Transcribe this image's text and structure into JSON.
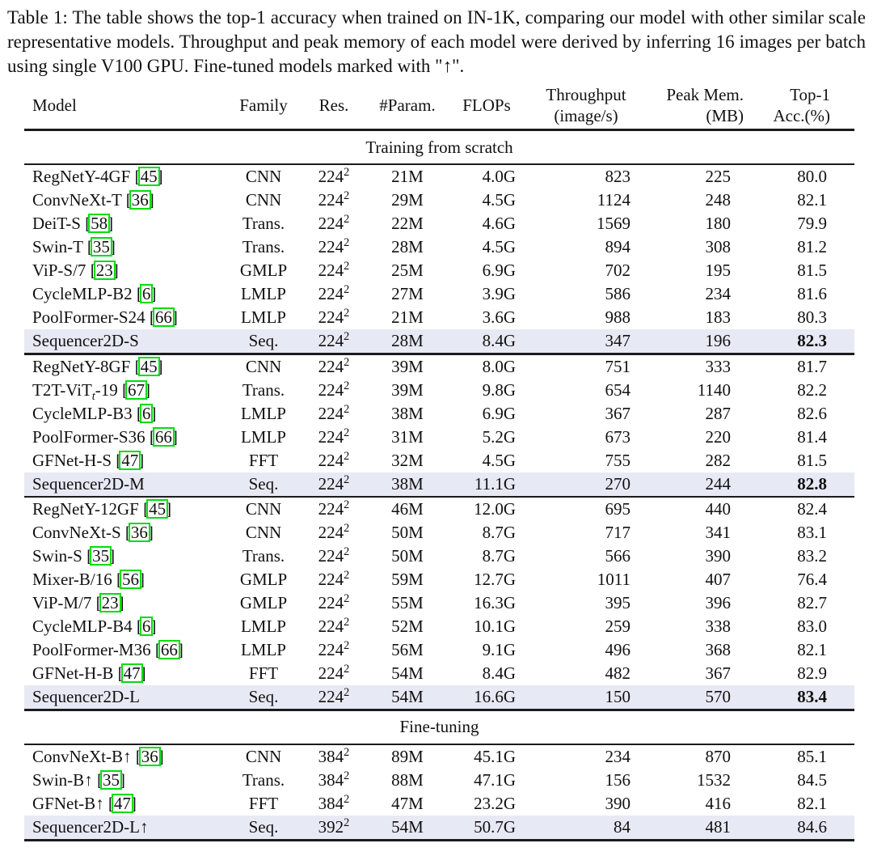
{
  "caption": "Table 1: The table shows the top-1 accuracy when trained on IN-1K, comparing our model with other similar scale representative models. Throughput and peak memory of each model were derived by inferring 16 images per batch using single V100 GPU. Fine-tuned models marked with \"↑\".",
  "colors": {
    "highlight_row": "#e7e9f4",
    "citation_box": "#00dd0d",
    "rule": "#1b1b1b"
  },
  "table": {
    "headers": {
      "model": "Model",
      "family": "Family",
      "res": "Res.",
      "param": "#Param.",
      "flops": "FLOPs",
      "throughput_l1": "Throughput",
      "throughput_l2": "(image/s)",
      "peakmem_l1": "Peak Mem.",
      "peakmem_l2": "(MB)",
      "top1_l1": "Top-1",
      "top1_l2": "Acc.(%)"
    },
    "sections": [
      {
        "label": "Training from scratch",
        "groups": [
          [
            {
              "model": "RegNetY-4GF",
              "model_sub": "",
              "model_post": "",
              "cite": "45",
              "family": "CNN",
              "res": "224",
              "res_sup": "2",
              "param": "21M",
              "flops": "4.0G",
              "throughput": "823",
              "peak_mem": "225",
              "acc": "80.0",
              "highlight": false,
              "acc_bold": false
            },
            {
              "model": "ConvNeXt-T",
              "model_sub": "",
              "model_post": "",
              "cite": "36",
              "family": "CNN",
              "res": "224",
              "res_sup": "2",
              "param": "29M",
              "flops": "4.5G",
              "throughput": "1124",
              "peak_mem": "248",
              "acc": "82.1",
              "highlight": false,
              "acc_bold": false
            },
            {
              "model": "DeiT-S",
              "model_sub": "",
              "model_post": "",
              "cite": "58",
              "family": "Trans.",
              "res": "224",
              "res_sup": "2",
              "param": "22M",
              "flops": "4.6G",
              "throughput": "1569",
              "peak_mem": "180",
              "acc": "79.9",
              "highlight": false,
              "acc_bold": false
            },
            {
              "model": "Swin-T",
              "model_sub": "",
              "model_post": "",
              "cite": "35",
              "family": "Trans.",
              "res": "224",
              "res_sup": "2",
              "param": "28M",
              "flops": "4.5G",
              "throughput": "894",
              "peak_mem": "308",
              "acc": "81.2",
              "highlight": false,
              "acc_bold": false
            },
            {
              "model": "ViP-S/7",
              "model_sub": "",
              "model_post": "",
              "cite": "23",
              "family": "GMLP",
              "res": "224",
              "res_sup": "2",
              "param": "25M",
              "flops": "6.9G",
              "throughput": "702",
              "peak_mem": "195",
              "acc": "81.5",
              "highlight": false,
              "acc_bold": false
            },
            {
              "model": "CycleMLP-B2",
              "model_sub": "",
              "model_post": "",
              "cite": "6",
              "family": "LMLP",
              "res": "224",
              "res_sup": "2",
              "param": "27M",
              "flops": "3.9G",
              "throughput": "586",
              "peak_mem": "234",
              "acc": "81.6",
              "highlight": false,
              "acc_bold": false
            },
            {
              "model": "PoolFormer-S24",
              "model_sub": "",
              "model_post": "",
              "cite": "66",
              "family": "LMLP",
              "res": "224",
              "res_sup": "2",
              "param": "21M",
              "flops": "3.6G",
              "throughput": "988",
              "peak_mem": "183",
              "acc": "80.3",
              "highlight": false,
              "acc_bold": false
            },
            {
              "model": "Sequencer2D-S",
              "model_sub": "",
              "model_post": "",
              "cite": null,
              "family": "Seq.",
              "res": "224",
              "res_sup": "2",
              "param": "28M",
              "flops": "8.4G",
              "throughput": "347",
              "peak_mem": "196",
              "acc": "82.3",
              "highlight": true,
              "acc_bold": true
            }
          ],
          [
            {
              "model": "RegNetY-8GF",
              "model_sub": "",
              "model_post": "",
              "cite": "45",
              "family": "CNN",
              "res": "224",
              "res_sup": "2",
              "param": "39M",
              "flops": "8.0G",
              "throughput": "751",
              "peak_mem": "333",
              "acc": "81.7",
              "highlight": false,
              "acc_bold": false
            },
            {
              "model": "T2T-ViT",
              "model_sub": "t",
              "model_post": "-19",
              "cite": "67",
              "family": "Trans.",
              "res": "224",
              "res_sup": "2",
              "param": "39M",
              "flops": "9.8G",
              "throughput": "654",
              "peak_mem": "1140",
              "acc": "82.2",
              "highlight": false,
              "acc_bold": false
            },
            {
              "model": "CycleMLP-B3",
              "model_sub": "",
              "model_post": "",
              "cite": "6",
              "family": "LMLP",
              "res": "224",
              "res_sup": "2",
              "param": "38M",
              "flops": "6.9G",
              "throughput": "367",
              "peak_mem": "287",
              "acc": "82.6",
              "highlight": false,
              "acc_bold": false
            },
            {
              "model": "PoolFormer-S36",
              "model_sub": "",
              "model_post": "",
              "cite": "66",
              "family": "LMLP",
              "res": "224",
              "res_sup": "2",
              "param": "31M",
              "flops": "5.2G",
              "throughput": "673",
              "peak_mem": "220",
              "acc": "81.4",
              "highlight": false,
              "acc_bold": false
            },
            {
              "model": "GFNet-H-S",
              "model_sub": "",
              "model_post": "",
              "cite": "47",
              "family": "FFT",
              "res": "224",
              "res_sup": "2",
              "param": "32M",
              "flops": "4.5G",
              "throughput": "755",
              "peak_mem": "282",
              "acc": "81.5",
              "highlight": false,
              "acc_bold": false
            },
            {
              "model": "Sequencer2D-M",
              "model_sub": "",
              "model_post": "",
              "cite": null,
              "family": "Seq.",
              "res": "224",
              "res_sup": "2",
              "param": "38M",
              "flops": "11.1G",
              "throughput": "270",
              "peak_mem": "244",
              "acc": "82.8",
              "highlight": true,
              "acc_bold": true
            }
          ],
          [
            {
              "model": "RegNetY-12GF",
              "model_sub": "",
              "model_post": "",
              "cite": "45",
              "family": "CNN",
              "res": "224",
              "res_sup": "2",
              "param": "46M",
              "flops": "12.0G",
              "throughput": "695",
              "peak_mem": "440",
              "acc": "82.4",
              "highlight": false,
              "acc_bold": false
            },
            {
              "model": "ConvNeXt-S",
              "model_sub": "",
              "model_post": "",
              "cite": "36",
              "family": "CNN",
              "res": "224",
              "res_sup": "2",
              "param": "50M",
              "flops": "8.7G",
              "throughput": "717",
              "peak_mem": "341",
              "acc": "83.1",
              "highlight": false,
              "acc_bold": false
            },
            {
              "model": "Swin-S",
              "model_sub": "",
              "model_post": "",
              "cite": "35",
              "family": "Trans.",
              "res": "224",
              "res_sup": "2",
              "param": "50M",
              "flops": "8.7G",
              "throughput": "566",
              "peak_mem": "390",
              "acc": "83.2",
              "highlight": false,
              "acc_bold": false
            },
            {
              "model": "Mixer-B/16",
              "model_sub": "",
              "model_post": "",
              "cite": "56",
              "family": "GMLP",
              "res": "224",
              "res_sup": "2",
              "param": "59M",
              "flops": "12.7G",
              "throughput": "1011",
              "peak_mem": "407",
              "acc": "76.4",
              "highlight": false,
              "acc_bold": false
            },
            {
              "model": "ViP-M/7",
              "model_sub": "",
              "model_post": "",
              "cite": "23",
              "family": "GMLP",
              "res": "224",
              "res_sup": "2",
              "param": "55M",
              "flops": "16.3G",
              "throughput": "395",
              "peak_mem": "396",
              "acc": "82.7",
              "highlight": false,
              "acc_bold": false
            },
            {
              "model": "CycleMLP-B4",
              "model_sub": "",
              "model_post": "",
              "cite": "6",
              "family": "LMLP",
              "res": "224",
              "res_sup": "2",
              "param": "52M",
              "flops": "10.1G",
              "throughput": "259",
              "peak_mem": "338",
              "acc": "83.0",
              "highlight": false,
              "acc_bold": false
            },
            {
              "model": "PoolFormer-M36",
              "model_sub": "",
              "model_post": "",
              "cite": "66",
              "family": "LMLP",
              "res": "224",
              "res_sup": "2",
              "param": "56M",
              "flops": "9.1G",
              "throughput": "496",
              "peak_mem": "368",
              "acc": "82.1",
              "highlight": false,
              "acc_bold": false
            },
            {
              "model": "GFNet-H-B",
              "model_sub": "",
              "model_post": "",
              "cite": "47",
              "family": "FFT",
              "res": "224",
              "res_sup": "2",
              "param": "54M",
              "flops": "8.4G",
              "throughput": "482",
              "peak_mem": "367",
              "acc": "82.9",
              "highlight": false,
              "acc_bold": false
            },
            {
              "model": "Sequencer2D-L",
              "model_sub": "",
              "model_post": "",
              "cite": null,
              "family": "Seq.",
              "res": "224",
              "res_sup": "2",
              "param": "54M",
              "flops": "16.6G",
              "throughput": "150",
              "peak_mem": "570",
              "acc": "83.4",
              "highlight": true,
              "acc_bold": true
            }
          ]
        ]
      },
      {
        "label": "Fine-tuning",
        "groups": [
          [
            {
              "model": "ConvNeXt-B↑",
              "model_sub": "",
              "model_post": "",
              "cite": "36",
              "family": "CNN",
              "res": "384",
              "res_sup": "2",
              "param": "89M",
              "flops": "45.1G",
              "throughput": "234",
              "peak_mem": "870",
              "acc": "85.1",
              "highlight": false,
              "acc_bold": false
            },
            {
              "model": "Swin-B↑",
              "model_sub": "",
              "model_post": "",
              "cite": "35",
              "family": "Trans.",
              "res": "384",
              "res_sup": "2",
              "param": "88M",
              "flops": "47.1G",
              "throughput": "156",
              "peak_mem": "1532",
              "acc": "84.5",
              "highlight": false,
              "acc_bold": false
            },
            {
              "model": "GFNet-B↑",
              "model_sub": "",
              "model_post": "",
              "cite": "47",
              "family": "FFT",
              "res": "384",
              "res_sup": "2",
              "param": "47M",
              "flops": "23.2G",
              "throughput": "390",
              "peak_mem": "416",
              "acc": "82.1",
              "highlight": false,
              "acc_bold": false
            },
            {
              "model": "Sequencer2D-L↑",
              "model_sub": "",
              "model_post": "",
              "cite": null,
              "family": "Seq.",
              "res": "392",
              "res_sup": "2",
              "param": "54M",
              "flops": "50.7G",
              "throughput": "84",
              "peak_mem": "481",
              "acc": "84.6",
              "highlight": true,
              "acc_bold": false
            }
          ]
        ]
      }
    ]
  }
}
